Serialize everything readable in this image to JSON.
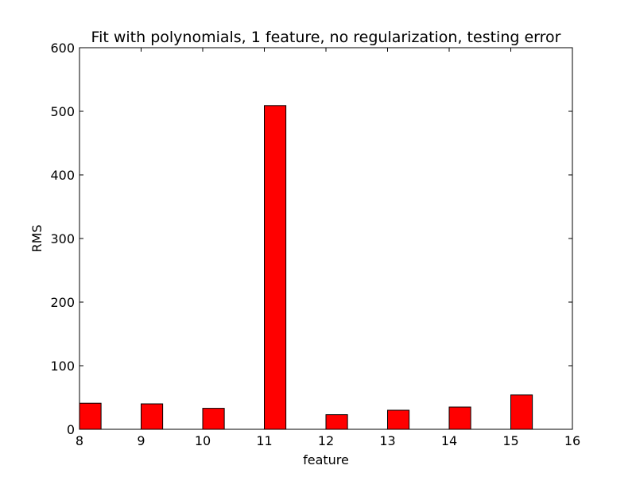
{
  "chart_data": {
    "type": "bar",
    "title": "Fit with polynomials, 1 feature, no regularization, testing error",
    "xlabel": "feature",
    "ylabel": "RMS",
    "x": [
      8,
      9,
      10,
      11,
      12,
      13,
      14,
      15
    ],
    "values": [
      41,
      40,
      33,
      509,
      23,
      30,
      35,
      54
    ],
    "bar_width": 0.35,
    "xlim": [
      8,
      16
    ],
    "ylim": [
      0,
      600
    ],
    "xticks": [
      "8",
      "9",
      "10",
      "11",
      "12",
      "13",
      "14",
      "15",
      "16"
    ],
    "yticks": [
      "0",
      "100",
      "200",
      "300",
      "400",
      "500",
      "600"
    ],
    "bar_color": "#ff0000",
    "grid": false,
    "legend": "none"
  }
}
